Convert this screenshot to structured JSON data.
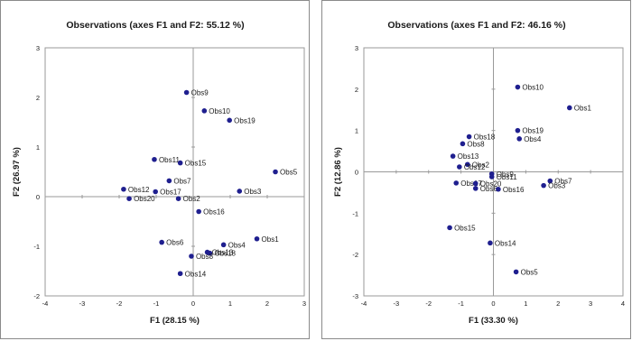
{
  "chart_data": [
    {
      "type": "scatter",
      "title": "Observations (axes F1 and F2: 55.12 %)",
      "xlabel": "F1 (28.15 %)",
      "ylabel": "F2 (26.97 %)",
      "xlim": [
        -4,
        3
      ],
      "ylim": [
        -2,
        3
      ],
      "xticks": [
        -4,
        -3,
        -2,
        -1,
        0,
        1,
        2,
        3
      ],
      "yticks": [
        -2,
        -1,
        0,
        1,
        2,
        3
      ],
      "point_color": "#1f1f8f",
      "points": [
        {
          "label": "Obs9",
          "x": -0.18,
          "y": 2.1
        },
        {
          "label": "Obs10",
          "x": 0.3,
          "y": 1.73
        },
        {
          "label": "Obs19",
          "x": 0.98,
          "y": 1.54
        },
        {
          "label": "Obs11",
          "x": -1.05,
          "y": 0.75
        },
        {
          "label": "Obs15",
          "x": -0.35,
          "y": 0.68
        },
        {
          "label": "Obs5",
          "x": 2.22,
          "y": 0.5
        },
        {
          "label": "Obs7",
          "x": -0.65,
          "y": 0.32
        },
        {
          "label": "Obs12",
          "x": -1.88,
          "y": 0.15
        },
        {
          "label": "Obs17",
          "x": -1.02,
          "y": 0.1
        },
        {
          "label": "Obs3",
          "x": 1.25,
          "y": 0.11
        },
        {
          "label": "Obs20",
          "x": -1.73,
          "y": -0.04
        },
        {
          "label": "Obs2",
          "x": -0.4,
          "y": -0.04
        },
        {
          "label": "Obs16",
          "x": 0.15,
          "y": -0.3
        },
        {
          "label": "Obs1",
          "x": 1.72,
          "y": -0.85
        },
        {
          "label": "Obs6",
          "x": -0.85,
          "y": -0.92
        },
        {
          "label": "Obs4",
          "x": 0.82,
          "y": -0.97
        },
        {
          "label": "Obs13",
          "x": 0.38,
          "y": -1.12
        },
        {
          "label": "Obs18",
          "x": 0.45,
          "y": -1.14
        },
        {
          "label": "Obs8",
          "x": -0.05,
          "y": -1.2
        },
        {
          "label": "Obs14",
          "x": -0.35,
          "y": -1.55
        }
      ]
    },
    {
      "type": "scatter",
      "title": "Observations (axes F1 and F2: 46.16 %)",
      "xlabel": "F1 (33.30 %)",
      "ylabel": "F2 (12.86 %)",
      "xlim": [
        -4,
        4
      ],
      "ylim": [
        -3,
        3
      ],
      "xticks": [
        -4,
        -3,
        -2,
        -1,
        0,
        1,
        2,
        3,
        4
      ],
      "yticks": [
        -3,
        -2,
        -1,
        0,
        1,
        2,
        3
      ],
      "point_color": "#1f1f8f",
      "points": [
        {
          "label": "Obs10",
          "x": 0.75,
          "y": 2.05
        },
        {
          "label": "Obs1",
          "x": 2.35,
          "y": 1.55
        },
        {
          "label": "Obs19",
          "x": 0.75,
          "y": 1.0
        },
        {
          "label": "Obs4",
          "x": 0.8,
          "y": 0.8
        },
        {
          "label": "Obs18",
          "x": -0.75,
          "y": 0.85
        },
        {
          "label": "Obs8",
          "x": -0.95,
          "y": 0.68
        },
        {
          "label": "Obs13",
          "x": -1.25,
          "y": 0.38
        },
        {
          "label": "Obs2",
          "x": -0.8,
          "y": 0.18
        },
        {
          "label": "Obs12",
          "x": -1.05,
          "y": 0.12
        },
        {
          "label": "Obs9",
          "x": -0.05,
          "y": -0.05
        },
        {
          "label": "Obs11",
          "x": -0.05,
          "y": -0.12
        },
        {
          "label": "Obs7",
          "x": 1.75,
          "y": -0.22
        },
        {
          "label": "Obs3",
          "x": 1.55,
          "y": -0.33
        },
        {
          "label": "Obs17",
          "x": -1.15,
          "y": -0.27
        },
        {
          "label": "Obs20",
          "x": -0.55,
          "y": -0.28
        },
        {
          "label": "Obs6",
          "x": -0.55,
          "y": -0.4
        },
        {
          "label": "Obs16",
          "x": 0.15,
          "y": -0.42
        },
        {
          "label": "Obs15",
          "x": -1.35,
          "y": -1.35
        },
        {
          "label": "Obs14",
          "x": -0.1,
          "y": -1.72
        },
        {
          "label": "Obs5",
          "x": 0.7,
          "y": -2.42
        }
      ]
    }
  ]
}
